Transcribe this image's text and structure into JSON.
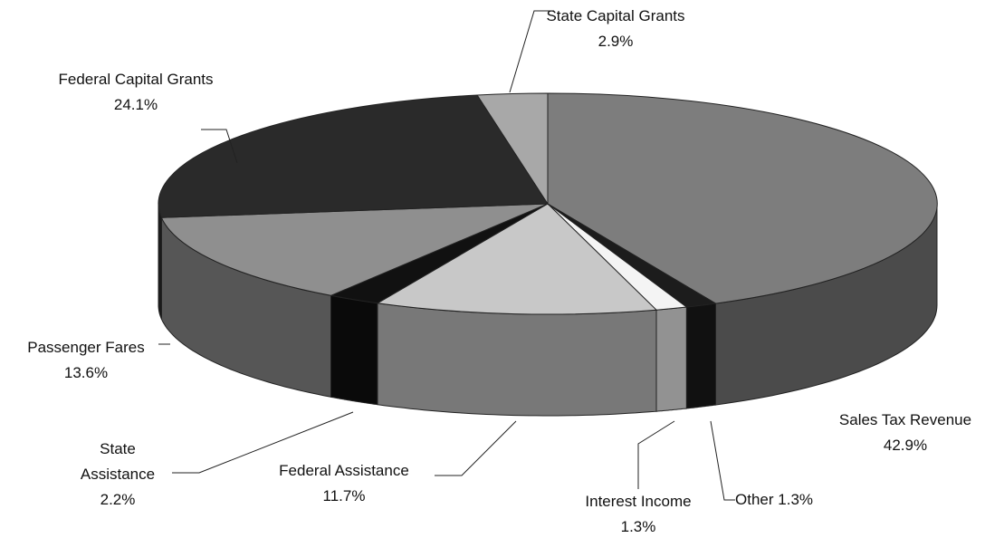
{
  "chart_data": {
    "type": "pie",
    "three_d": true,
    "categories": [
      "Sales Tax Revenue",
      "Other",
      "Interest Income",
      "Federal Assistance",
      "State Assistance",
      "Passenger Fares",
      "Federal Capital Grants",
      "State Capital Grants"
    ],
    "values": [
      42.9,
      1.3,
      1.3,
      11.7,
      2.2,
      13.6,
      24.1,
      2.9
    ],
    "value_labels": [
      "42.9%",
      "1.3%",
      "1.3%",
      "11.7%",
      "2.2%",
      "13.6%",
      "24.1%",
      "2.9%"
    ],
    "colors": [
      "#7d7d7d",
      "#1c1c1c",
      "#f4f4f4",
      "#c8c8c8",
      "#111111",
      "#8f8f8f",
      "#2a2a2a",
      "#a8a8a8"
    ]
  }
}
